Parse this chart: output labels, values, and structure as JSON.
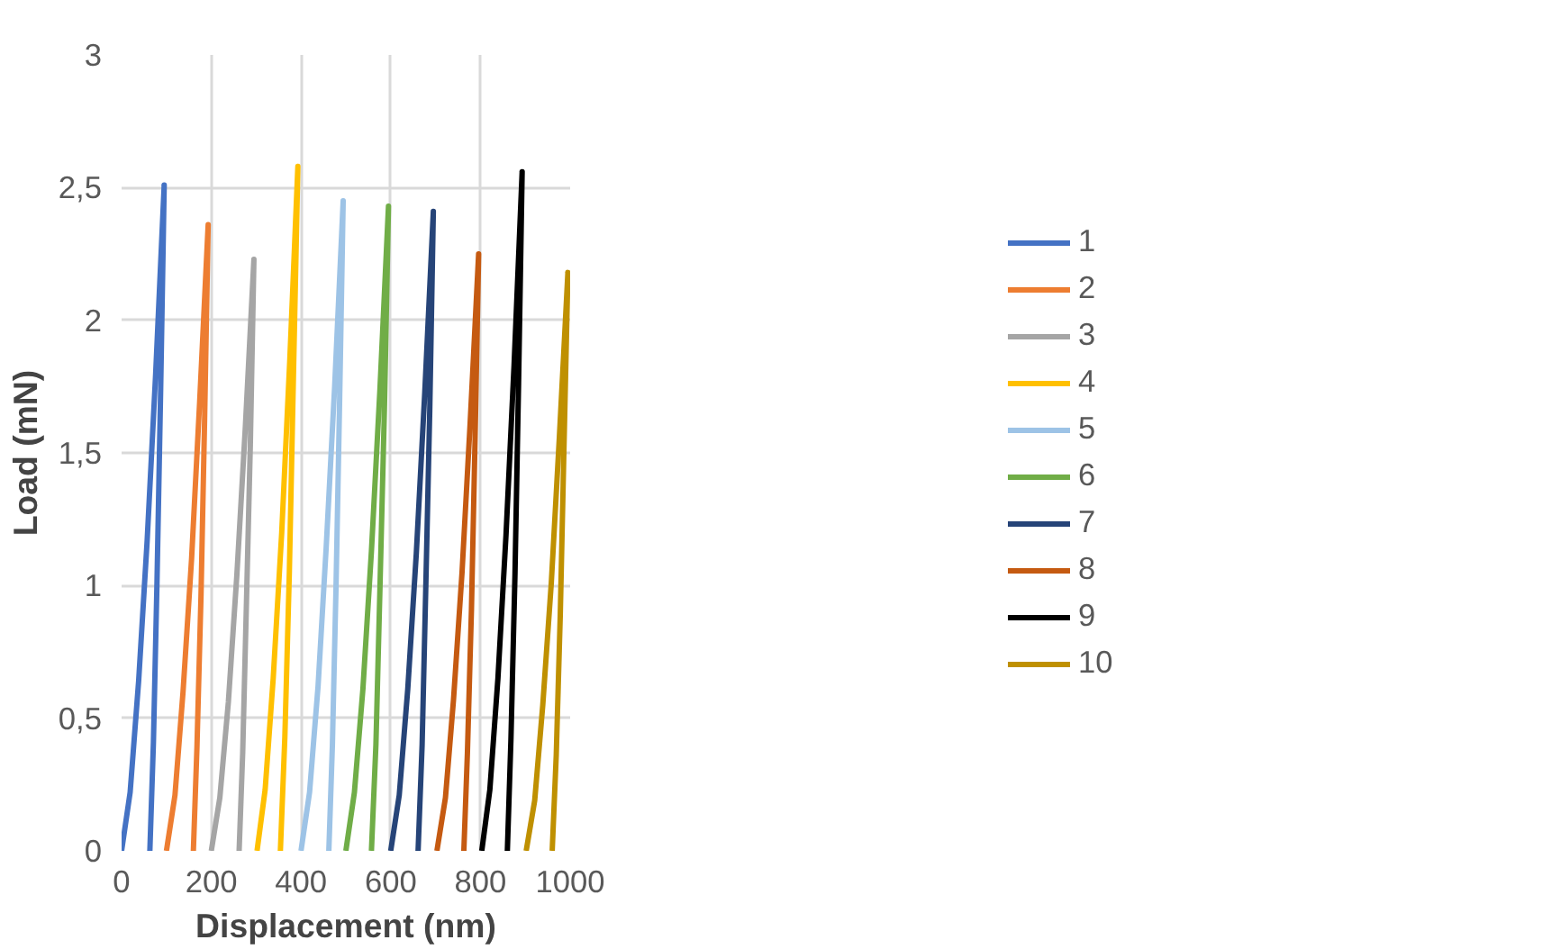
{
  "chart_data": {
    "type": "line",
    "xlabel": "Displacement (nm)",
    "ylabel": "Load (mN)",
    "xlim": [
      0,
      1000
    ],
    "xticks": [
      0,
      200,
      400,
      600,
      800,
      1000
    ],
    "ylim": [
      0,
      3
    ],
    "yticks": [
      0,
      {
        "value": 0.5,
        "label": "0,5"
      },
      1,
      {
        "value": 1.5,
        "label": "1,5"
      },
      2,
      {
        "value": 2.5,
        "label": "2,5"
      },
      3
    ],
    "grid": true,
    "legend": "right",
    "marker": "none",
    "line_style": "solid",
    "series": [
      {
        "name": "1",
        "color": "#4472c4",
        "x": [
          0,
          19,
          38,
          57,
          76,
          95,
          87,
          79,
          71,
          63
        ],
        "values": [
          0,
          0.22,
          0.64,
          1.17,
          1.8,
          2.51,
          1.73,
          1.02,
          0.41,
          0
        ]
      },
      {
        "name": "2",
        "color": "#ed7d31",
        "x": [
          100,
          119,
          137,
          156,
          174,
          193,
          185,
          177,
          168,
          160
        ],
        "values": [
          0,
          0.21,
          0.6,
          1.1,
          1.69,
          2.36,
          1.62,
          0.96,
          0.39,
          0
        ]
      },
      {
        "name": "3",
        "color": "#a5a5a5",
        "x": [
          200,
          219,
          238,
          257,
          276,
          295,
          287,
          278,
          270,
          262
        ],
        "values": [
          0,
          0.2,
          0.56,
          1.04,
          1.6,
          2.23,
          1.53,
          0.91,
          0.37,
          0
        ]
      },
      {
        "name": "4",
        "color": "#ffc000",
        "x": [
          302,
          320,
          338,
          357,
          375,
          393,
          383,
          374,
          364,
          354
        ],
        "values": [
          0,
          0.23,
          0.65,
          1.2,
          1.85,
          2.58,
          1.78,
          1.05,
          0.43,
          0
        ]
      },
      {
        "name": "5",
        "color": "#9dc3e6",
        "x": [
          400,
          419,
          438,
          456,
          475,
          494,
          486,
          478,
          470,
          462
        ],
        "values": [
          0,
          0.22,
          0.62,
          1.14,
          1.75,
          2.45,
          1.69,
          0.99,
          0.4,
          0
        ]
      },
      {
        "name": "6",
        "color": "#70ad47",
        "x": [
          500,
          519,
          538,
          557,
          576,
          595,
          586,
          576,
          567,
          557
        ],
        "values": [
          0,
          0.22,
          0.61,
          1.13,
          1.74,
          2.43,
          1.67,
          0.99,
          0.4,
          0
        ]
      },
      {
        "name": "7",
        "color": "#264478",
        "x": [
          600,
          619,
          638,
          657,
          676,
          695,
          687,
          678,
          670,
          661
        ],
        "values": [
          0,
          0.21,
          0.61,
          1.12,
          1.73,
          2.41,
          1.66,
          0.98,
          0.4,
          0
        ]
      },
      {
        "name": "8",
        "color": "#c55a11",
        "x": [
          703,
          722,
          740,
          759,
          777,
          796,
          788,
          780,
          771,
          763
        ],
        "values": [
          0,
          0.2,
          0.57,
          1.05,
          1.61,
          2.25,
          1.55,
          0.91,
          0.37,
          0
        ]
      },
      {
        "name": "9",
        "color": "#000000",
        "x": [
          803,
          821,
          839,
          857,
          875,
          893,
          885,
          877,
          868,
          860
        ],
        "values": [
          0,
          0.23,
          0.65,
          1.19,
          1.83,
          2.56,
          1.76,
          1.04,
          0.42,
          0
        ]
      },
      {
        "name": "10",
        "color": "#bf9000",
        "x": [
          902,
          921,
          939,
          958,
          976,
          995,
          986,
          978,
          969,
          960
        ],
        "values": [
          0,
          0.19,
          0.55,
          1.01,
          1.56,
          2.18,
          1.5,
          0.89,
          0.36,
          0
        ]
      }
    ]
  }
}
